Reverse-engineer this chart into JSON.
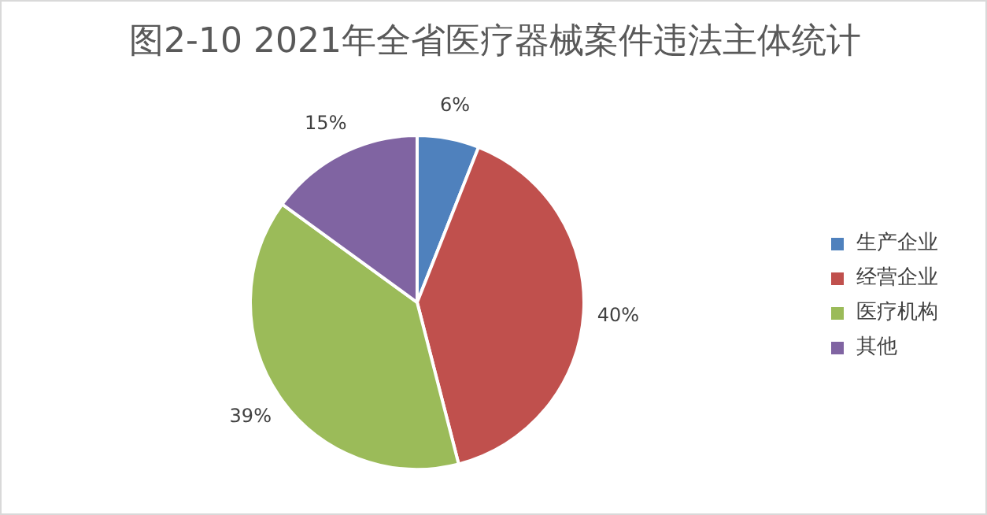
{
  "chart_data": {
    "type": "pie",
    "title": "图2-10  2021年全省医疗器械案件违法主体统计",
    "categories": [
      "生产企业",
      "经营企业",
      "医疗机构",
      "其他"
    ],
    "values": [
      6,
      40,
      39,
      15
    ],
    "colors": [
      "#4f81bd",
      "#c0504d",
      "#9bbb59",
      "#8064a2"
    ],
    "value_labels": [
      "6%",
      "40%",
      "39%",
      "15%"
    ],
    "legend": "right"
  }
}
